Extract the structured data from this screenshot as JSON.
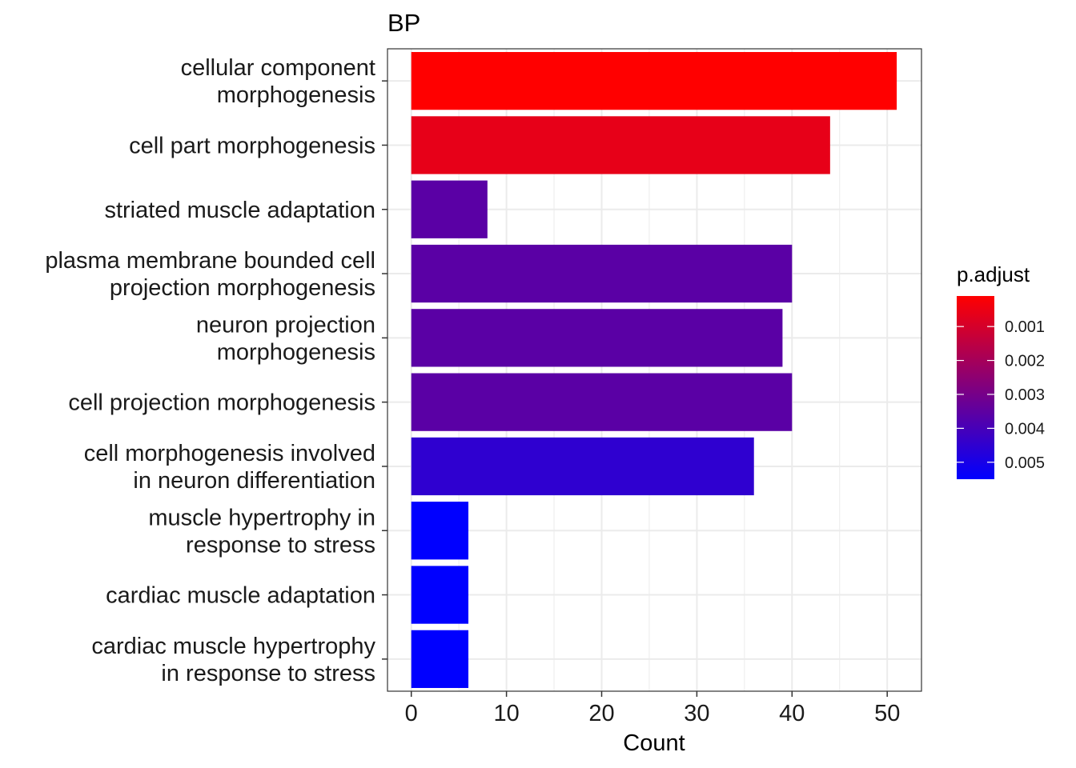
{
  "chart_data": {
    "type": "bar",
    "orientation": "horizontal",
    "title": "BP",
    "xlabel": "Count",
    "ylabel": "",
    "xlim": [
      -2.5,
      53.6
    ],
    "xticks": [
      0,
      10,
      20,
      30,
      40,
      50
    ],
    "grid": true,
    "categories": [
      "cellular component\nmorphogenesis",
      "cell part morphogenesis",
      "striated muscle adaptation",
      "plasma membrane bounded cell\nprojection morphogenesis",
      "neuron projection\nmorphogenesis",
      "cell projection morphogenesis",
      "cell morphogenesis involved\nin neuron differentiation",
      "muscle hypertrophy in\nresponse to stress",
      "cardiac muscle adaptation",
      "cardiac muscle hypertrophy\nin response to stress"
    ],
    "values": [
      51,
      44,
      8,
      40,
      39,
      40,
      36,
      6,
      6,
      6
    ],
    "p_adjust": [
      0.0001,
      0.0006,
      0.0036,
      0.0036,
      0.0036,
      0.0036,
      0.0045,
      0.0055,
      0.0055,
      0.0055
    ],
    "color_scale": {
      "title": "p.adjust",
      "low_color": "#ff0000",
      "high_color": "#0000ff",
      "min": 0.0001,
      "max": 0.0055,
      "ticks": [
        0.001,
        0.002,
        0.003,
        0.004,
        0.005
      ],
      "tick_labels": [
        "0.001",
        "0.002",
        "0.003",
        "0.004",
        "0.005"
      ]
    },
    "legend_position": "right"
  }
}
